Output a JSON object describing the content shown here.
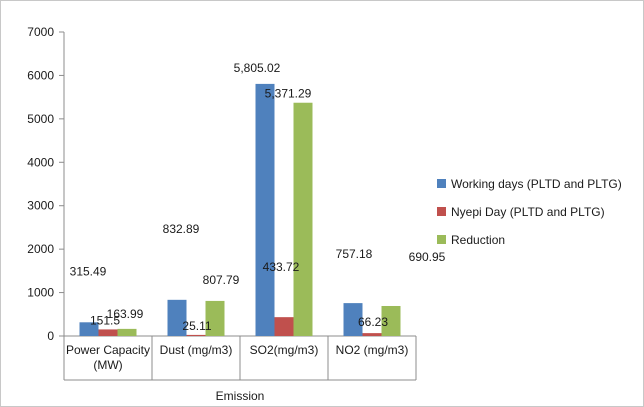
{
  "chart_data": {
    "type": "bar",
    "categories": [
      "Power Capacity (MW)",
      "Dust (mg/m3)",
      "SO2(mg/m3)",
      "NO2 (mg/m3)"
    ],
    "category_lines": [
      [
        "Power Capacity",
        "(MW)"
      ],
      [
        "Dust (mg/m3)"
      ],
      [
        "SO2(mg/m3)"
      ],
      [
        "NO2 (mg/m3)"
      ]
    ],
    "group_label": "Emission",
    "series": [
      {
        "name": "Working days (PLTD and PLTG)",
        "values": [
          315.49,
          832.89,
          5805.02,
          757.18
        ],
        "color": "#4f81bd"
      },
      {
        "name": "Nyepi Day (PLTD and PLTG)",
        "values": [
          151.5,
          25.11,
          433.72,
          66.23
        ],
        "color": "#c0504d"
      },
      {
        "name": "Reduction",
        "values": [
          163.99,
          807.79,
          5371.29,
          690.95
        ],
        "color": "#9bbb59"
      }
    ],
    "data_labels": [
      [
        "315.49",
        "832.89",
        "5,805.02",
        "757.18"
      ],
      [
        "151.5",
        "25.11",
        "433.72",
        "66.23"
      ],
      [
        "163.99",
        "807.79",
        "5,371.29",
        "690.95"
      ]
    ],
    "y_ticks": [
      0,
      1000,
      2000,
      3000,
      4000,
      5000,
      6000,
      7000
    ],
    "ylim": [
      0,
      7000
    ],
    "legend_position": "right",
    "grid": false
  }
}
